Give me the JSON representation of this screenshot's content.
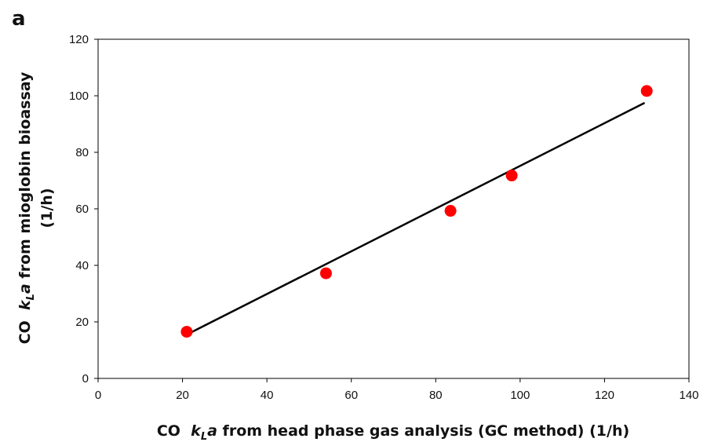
{
  "panel_label": "a",
  "chart_data": {
    "type": "scatter",
    "title": "",
    "xlabel": {
      "pre": "CO  ",
      "k": "k",
      "sub": "L",
      "a": "a",
      "post": " from head phase gas analysis (GC method) (1/h)"
    },
    "ylabel": {
      "line1": {
        "pre": "CO  ",
        "k": "k",
        "sub": "L",
        "a": "a",
        "post": " from mioglobin bioassay"
      },
      "line2": "(1/h)"
    },
    "xlim": [
      0,
      140
    ],
    "ylim": [
      0,
      120
    ],
    "xticks": [
      0,
      20,
      40,
      60,
      80,
      100,
      120,
      140
    ],
    "yticks": [
      0,
      20,
      40,
      60,
      80,
      100,
      120
    ],
    "grid": false,
    "legend": "none",
    "point_color": "#ff0000",
    "line_color": "#000000",
    "series": [
      {
        "type": "scatter",
        "points": [
          {
            "x": 21,
            "y": 16.5
          },
          {
            "x": 54,
            "y": 37.2
          },
          {
            "x": 83.5,
            "y": 59.3
          },
          {
            "x": 98,
            "y": 71.8
          },
          {
            "x": 130,
            "y": 101.7
          }
        ]
      },
      {
        "type": "line",
        "points": [
          {
            "x": 21,
            "y": 15.5
          },
          {
            "x": 129.5,
            "y": 97.5
          }
        ]
      }
    ]
  }
}
